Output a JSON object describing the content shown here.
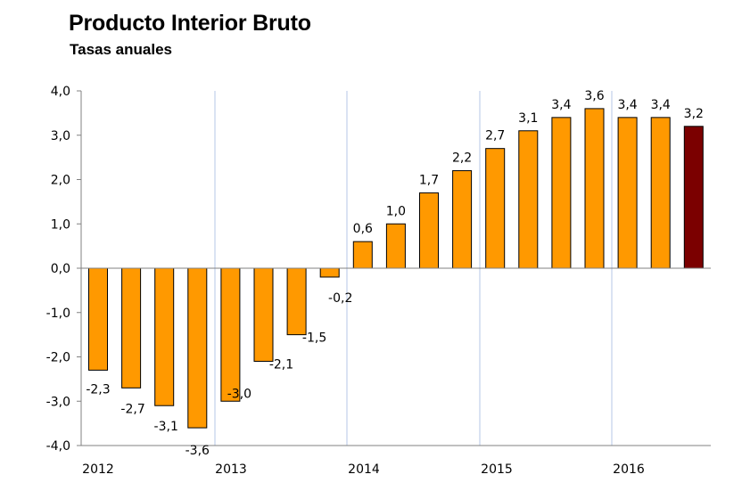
{
  "chart_data": {
    "type": "bar",
    "title": "Producto Interior Bruto",
    "subtitle": "Tasas anuales",
    "xlabel": "",
    "ylabel": "",
    "ylim": [
      -4.0,
      4.0
    ],
    "y_ticks": [
      "4,0",
      "3,0",
      "2,0",
      "1,0",
      "0,0",
      "-1,0",
      "-2,0",
      "-3,0",
      "-4,0"
    ],
    "x_year_labels": [
      "2012",
      "2013",
      "2014",
      "2015",
      "2016"
    ],
    "grid": "vertical lines between years",
    "values": [
      -2.3,
      -2.7,
      -3.1,
      -3.6,
      -3.0,
      -2.1,
      -1.5,
      -0.2,
      0.6,
      1.0,
      1.7,
      2.2,
      2.7,
      3.1,
      3.4,
      3.6,
      3.4,
      3.4,
      3.2
    ],
    "labels": [
      "-2,3",
      "-2,7",
      "-3,1",
      "-3,6",
      "-3,0",
      "-2,1",
      "-1,5",
      "-0,2",
      "0,6",
      "1,0",
      "1,7",
      "2,2",
      "2,7",
      "3,1",
      "3,4",
      "3,6",
      "3,4",
      "3,4",
      "3,2"
    ],
    "colors": {
      "bar": "#FF9900",
      "highlight": "#7B0000",
      "gridline": "#B4C7E7",
      "axis": "#808080"
    },
    "highlight_index": 18
  }
}
